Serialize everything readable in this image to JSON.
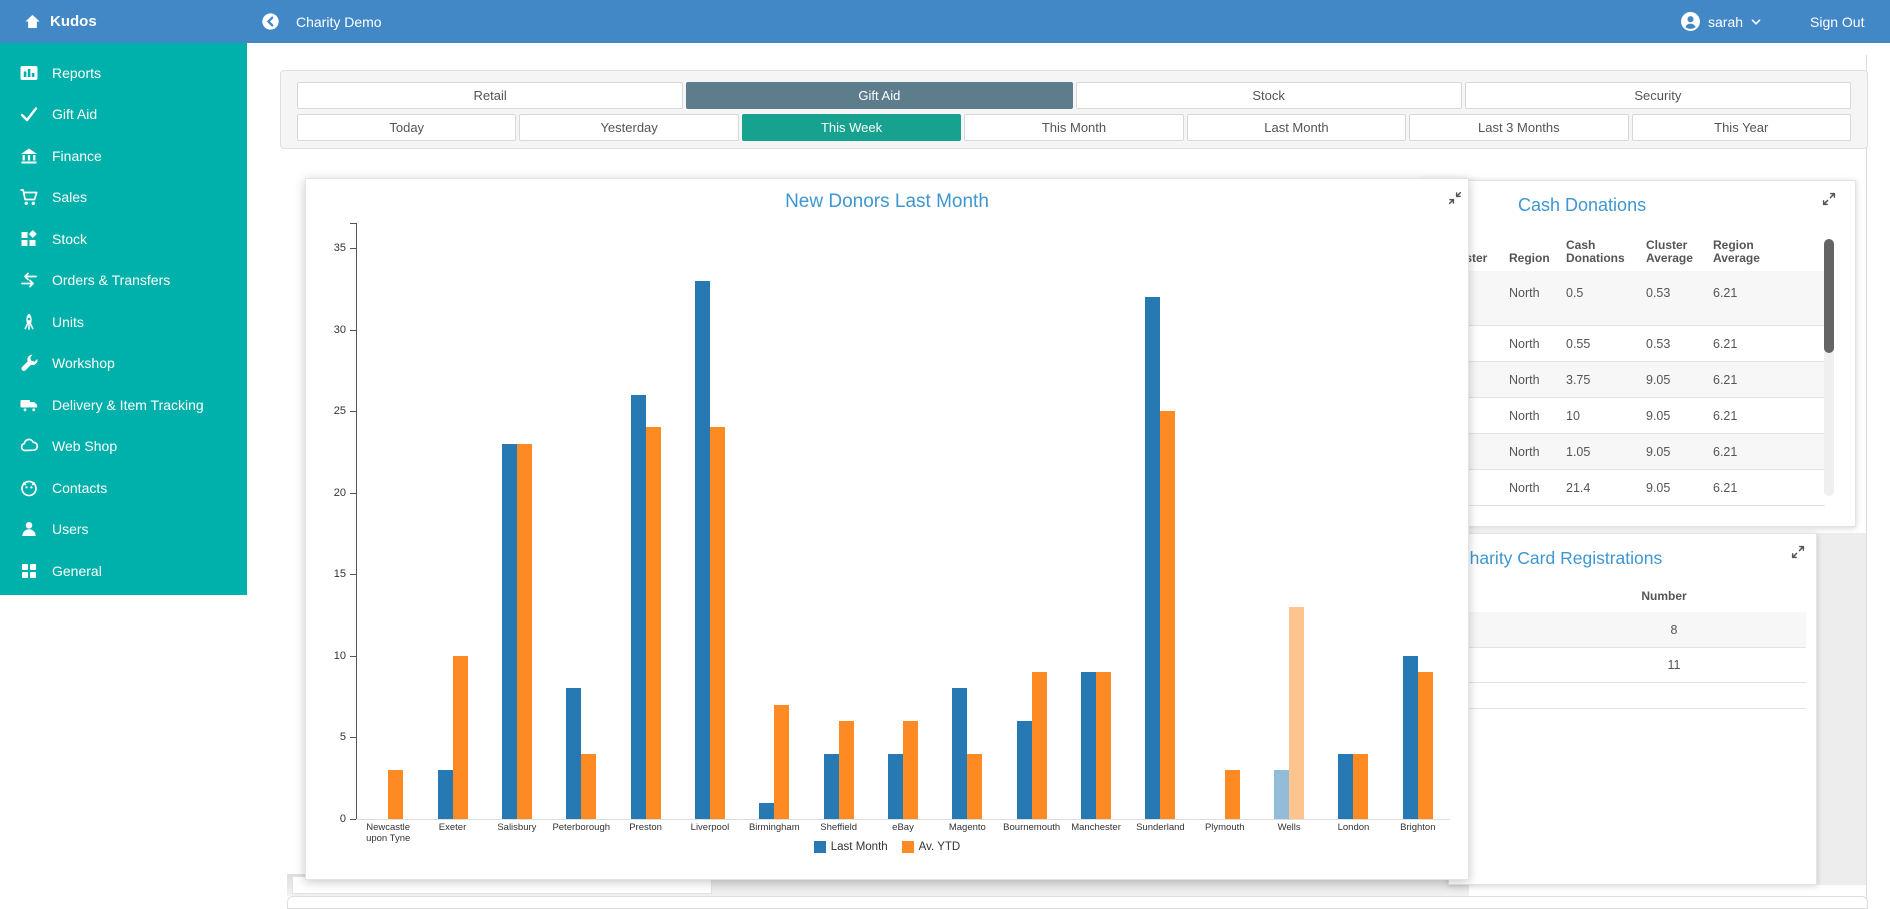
{
  "header": {
    "brand": "Kudos",
    "page_title": "Charity Demo",
    "user": "sarah",
    "sign_out": "Sign Out"
  },
  "sidebar": {
    "items": [
      {
        "label": "Reports",
        "icon": "bar-chart-icon"
      },
      {
        "label": "Gift Aid",
        "icon": "check-icon"
      },
      {
        "label": "Finance",
        "icon": "bank-icon"
      },
      {
        "label": "Sales",
        "icon": "cart-icon"
      },
      {
        "label": "Stock",
        "icon": "boxes-icon"
      },
      {
        "label": "Orders & Transfers",
        "icon": "transfer-arrows-icon"
      },
      {
        "label": "Units",
        "icon": "rocket-icon"
      },
      {
        "label": "Workshop",
        "icon": "wrench-icon"
      },
      {
        "label": "Delivery & Item Tracking",
        "icon": "truck-icon"
      },
      {
        "label": "Web Shop",
        "icon": "cloud-icon"
      },
      {
        "label": "Contacts",
        "icon": "face-icon"
      },
      {
        "label": "Users",
        "icon": "user-icon"
      },
      {
        "label": "General",
        "icon": "grid-icon"
      }
    ]
  },
  "tabs": {
    "primary": [
      {
        "label": "Retail",
        "active": false
      },
      {
        "label": "Gift Aid",
        "active": true
      },
      {
        "label": "Stock",
        "active": false
      },
      {
        "label": "Security",
        "active": false
      }
    ],
    "time": [
      {
        "label": "Today",
        "active": false
      },
      {
        "label": "Yesterday",
        "active": false
      },
      {
        "label": "This Week",
        "active": true
      },
      {
        "label": "This Month",
        "active": false
      },
      {
        "label": "Last Month",
        "active": false
      },
      {
        "label": "Last 3 Months",
        "active": false
      },
      {
        "label": "This Year",
        "active": false
      }
    ]
  },
  "chart_data": {
    "type": "bar",
    "title": "New Donors Last Month",
    "categories": [
      "Newcastle upon Tyne",
      "Exeter",
      "Salisbury",
      "Peterborough",
      "Preston",
      "Liverpool",
      "Birmingham",
      "Sheffield",
      "eBay",
      "Magento",
      "Bournemouth",
      "Manchester",
      "Sunderland",
      "Plymouth",
      "Wells",
      "London",
      "Brighton"
    ],
    "series": [
      {
        "name": "Last Month",
        "color": "#2679b2",
        "values": [
          0,
          3,
          23,
          8,
          26,
          33,
          1,
          4,
          4,
          8,
          6,
          9,
          32,
          0,
          3,
          4,
          10
        ]
      },
      {
        "name": "Av. YTD",
        "color": "#fd8a22",
        "values": [
          3,
          10,
          23,
          4,
          24,
          24,
          7,
          6,
          6,
          4,
          9,
          9,
          25,
          3,
          13,
          4,
          9
        ]
      }
    ],
    "highlighted_category": "Wells",
    "ylim": [
      0,
      35
    ],
    "yticks": [
      0,
      5,
      10,
      15,
      20,
      25,
      30,
      35
    ],
    "xlabel": "",
    "ylabel": "",
    "grid": false,
    "legend_position": "bottom"
  },
  "cash_panel": {
    "title": "Cash Donations",
    "columns": [
      "Cluster",
      "Region",
      "Cash Donations",
      "Cluster Average",
      "Region Average"
    ],
    "rows": [
      [
        "",
        "North",
        "0.5",
        "0.53",
        "6.21"
      ],
      [
        "",
        "North",
        "0.55",
        "0.53",
        "6.21"
      ],
      [
        "",
        "North",
        "3.75",
        "9.05",
        "6.21"
      ],
      [
        "",
        "North",
        "10",
        "9.05",
        "6.21"
      ],
      [
        "",
        "North",
        "1.05",
        "9.05",
        "6.21"
      ],
      [
        "",
        "North",
        "21.4",
        "9.05",
        "6.21"
      ]
    ]
  },
  "charity_panel": {
    "title": "Charity Card Registrations",
    "column": "Number",
    "rows": [
      "8",
      "11"
    ]
  },
  "colors": {
    "header_blue": "#4288c7",
    "sidebar_teal": "#00b0aa",
    "active_primary_tab": "#5e7d8c",
    "active_time_tab": "#17a28f",
    "title_blue": "#3e96d3",
    "bar_blue": "#2679b2",
    "bar_orange": "#fd8a22"
  }
}
